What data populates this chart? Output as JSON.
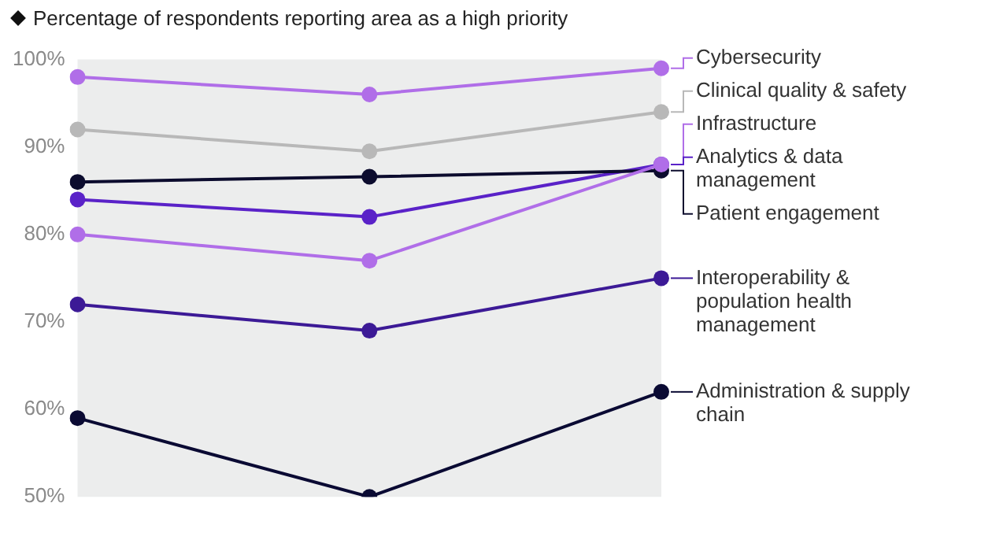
{
  "chart_data": {
    "type": "line",
    "title": "Percentage of respondents reporting area as a high priority",
    "categories": [
      null,
      null,
      null
    ],
    "series": [
      {
        "name": "Cybersecurity",
        "color": "#b06ee8",
        "values": [
          98,
          96,
          99
        ]
      },
      {
        "name": "Clinical quality & safety",
        "color": "#b8b8b8",
        "values": [
          92,
          89.5,
          94
        ]
      },
      {
        "name": "Infrastructure",
        "color": "#b06ee8",
        "values": [
          80,
          77,
          88
        ]
      },
      {
        "name": "Patient engagement",
        "color": "#0c0c2e",
        "values": [
          86,
          86.6,
          87.3
        ]
      },
      {
        "name": "Analytics & data management",
        "color": "#5a22c8",
        "values": [
          84,
          82,
          88
        ]
      },
      {
        "name": "Interoperability & population health management",
        "color": "#3c1a96",
        "values": [
          72,
          69,
          75
        ]
      },
      {
        "name": "Administration & supply chain",
        "color": "#0a0a33",
        "values": [
          59,
          50,
          62
        ]
      }
    ],
    "ylim": [
      50,
      100
    ],
    "yticks": [
      {
        "value": 50,
        "label": "50%"
      },
      {
        "value": 60,
        "label": "60%"
      },
      {
        "value": 70,
        "label": "70%"
      },
      {
        "value": 80,
        "label": "80%"
      },
      {
        "value": 90,
        "label": "90%"
      },
      {
        "value": 100,
        "label": "100%"
      }
    ],
    "grid": false,
    "legend": "right",
    "marker": "circle",
    "line_style": "solid"
  }
}
